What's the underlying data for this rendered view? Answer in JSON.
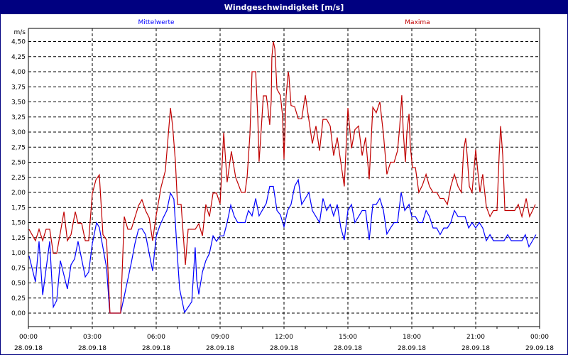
{
  "window": {
    "title": "Windgeschwindigkeit [m/s]"
  },
  "chart_data": {
    "type": "line",
    "title": "Windgeschwindigkeit [m/s]",
    "ylabel": "m/s",
    "xlabel": "",
    "ylim": [
      0,
      4.5
    ],
    "xlim_hours": [
      0,
      24
    ],
    "grid": true,
    "legend_placement": "top",
    "y_ticks": [
      "0,00",
      "0,25",
      "0,50",
      "0,75",
      "1,00",
      "1,25",
      "1,50",
      "1,75",
      "2,00",
      "2,25",
      "2,50",
      "2,75",
      "3,00",
      "3,25",
      "3,50",
      "3,75",
      "4,00",
      "4,25",
      "4,50"
    ],
    "x_ticks": [
      {
        "time": "00:00",
        "date": "28.09.18"
      },
      {
        "time": "03:00",
        "date": "28.09.18"
      },
      {
        "time": "06:00",
        "date": "28.09.18"
      },
      {
        "time": "09:00",
        "date": "28.09.18"
      },
      {
        "time": "12:00",
        "date": "28.09.18"
      },
      {
        "time": "15:00",
        "date": "28.09.18"
      },
      {
        "time": "18:00",
        "date": "28.09.18"
      },
      {
        "time": "21:00",
        "date": "28.09.18"
      },
      {
        "time": "00:00",
        "date": "29.09.18"
      }
    ],
    "series": [
      {
        "name": "Mittelwerte",
        "color": "#0000ff",
        "points": [
          [
            0.03,
            0.95
          ],
          [
            0.33,
            0.52
          ],
          [
            0.5,
            1.19
          ],
          [
            0.67,
            0.3
          ],
          [
            1.0,
            1.19
          ],
          [
            1.17,
            0.1
          ],
          [
            1.33,
            0.21
          ],
          [
            1.5,
            0.87
          ],
          [
            1.83,
            0.4
          ],
          [
            2.0,
            0.8
          ],
          [
            2.17,
            0.9
          ],
          [
            2.33,
            1.19
          ],
          [
            2.67,
            0.6
          ],
          [
            2.83,
            0.68
          ],
          [
            3.0,
            1.15
          ],
          [
            3.2,
            1.5
          ],
          [
            3.33,
            1.42
          ],
          [
            3.67,
            0.75
          ],
          [
            3.8,
            0.1
          ],
          [
            3.83,
            0
          ],
          [
            4.33,
            0
          ],
          [
            4.5,
            0.28
          ],
          [
            4.83,
            0.83
          ],
          [
            5.0,
            1.15
          ],
          [
            5.17,
            1.39
          ],
          [
            5.33,
            1.4
          ],
          [
            5.5,
            1.3
          ],
          [
            5.67,
            0.99
          ],
          [
            5.83,
            0.7
          ],
          [
            6.0,
            1.27
          ],
          [
            6.17,
            1.45
          ],
          [
            6.33,
            1.58
          ],
          [
            6.5,
            1.7
          ],
          [
            6.67,
            1.99
          ],
          [
            6.83,
            1.89
          ],
          [
            6.9,
            1.5
          ],
          [
            7.0,
            0.92
          ],
          [
            7.1,
            0.4
          ],
          [
            7.33,
            0.01
          ],
          [
            7.67,
            0.19
          ],
          [
            7.83,
            1.09
          ],
          [
            7.9,
            0.56
          ],
          [
            8.0,
            0.31
          ],
          [
            8.17,
            0.68
          ],
          [
            8.33,
            0.87
          ],
          [
            8.5,
            0.99
          ],
          [
            8.67,
            1.28
          ],
          [
            8.83,
            1.19
          ],
          [
            9.0,
            1.28
          ],
          [
            9.17,
            1.28
          ],
          [
            9.33,
            1.5
          ],
          [
            9.5,
            1.79
          ],
          [
            9.67,
            1.6
          ],
          [
            9.83,
            1.5
          ],
          [
            10.17,
            1.5
          ],
          [
            10.33,
            1.7
          ],
          [
            10.5,
            1.61
          ],
          [
            10.67,
            1.9
          ],
          [
            10.83,
            1.61
          ],
          [
            11.17,
            1.82
          ],
          [
            11.33,
            2.1
          ],
          [
            11.5,
            2.1
          ],
          [
            11.67,
            1.7
          ],
          [
            11.83,
            1.63
          ],
          [
            12.0,
            1.43
          ],
          [
            12.17,
            1.7
          ],
          [
            12.33,
            1.8
          ],
          [
            12.5,
            2.1
          ],
          [
            12.67,
            2.21
          ],
          [
            12.83,
            1.8
          ],
          [
            13.17,
            2.0
          ],
          [
            13.33,
            1.7
          ],
          [
            13.67,
            1.5
          ],
          [
            13.83,
            1.9
          ],
          [
            14.0,
            1.7
          ],
          [
            14.17,
            1.8
          ],
          [
            14.33,
            1.61
          ],
          [
            14.5,
            1.8
          ],
          [
            14.67,
            1.41
          ],
          [
            14.83,
            1.21
          ],
          [
            15.0,
            1.7
          ],
          [
            15.17,
            1.8
          ],
          [
            15.33,
            1.5
          ],
          [
            15.67,
            1.7
          ],
          [
            15.83,
            1.7
          ],
          [
            16.0,
            1.21
          ],
          [
            16.17,
            1.8
          ],
          [
            16.33,
            1.8
          ],
          [
            16.5,
            1.9
          ],
          [
            16.67,
            1.7
          ],
          [
            16.83,
            1.31
          ],
          [
            17.0,
            1.41
          ],
          [
            17.17,
            1.5
          ],
          [
            17.33,
            1.5
          ],
          [
            17.5,
            2.0
          ],
          [
            17.67,
            1.7
          ],
          [
            17.87,
            1.8
          ],
          [
            18.0,
            1.6
          ],
          [
            18.17,
            1.6
          ],
          [
            18.33,
            1.5
          ],
          [
            18.5,
            1.5
          ],
          [
            18.67,
            1.7
          ],
          [
            18.83,
            1.6
          ],
          [
            19.0,
            1.41
          ],
          [
            19.17,
            1.41
          ],
          [
            19.33,
            1.3
          ],
          [
            19.5,
            1.41
          ],
          [
            19.67,
            1.41
          ],
          [
            19.83,
            1.5
          ],
          [
            20.0,
            1.7
          ],
          [
            20.17,
            1.6
          ],
          [
            20.5,
            1.6
          ],
          [
            20.67,
            1.41
          ],
          [
            20.83,
            1.5
          ],
          [
            21.0,
            1.41
          ],
          [
            21.17,
            1.5
          ],
          [
            21.33,
            1.41
          ],
          [
            21.5,
            1.2
          ],
          [
            21.67,
            1.3
          ],
          [
            21.83,
            1.2
          ],
          [
            22.33,
            1.2
          ],
          [
            22.5,
            1.3
          ],
          [
            22.67,
            1.2
          ],
          [
            23.17,
            1.2
          ],
          [
            23.33,
            1.3
          ],
          [
            23.5,
            1.1
          ],
          [
            23.67,
            1.2
          ],
          [
            23.83,
            1.3
          ]
        ]
      },
      {
        "name": "Maxima",
        "color": "#c00000",
        "points": [
          [
            0.03,
            1.39
          ],
          [
            0.33,
            1.2
          ],
          [
            0.5,
            1.39
          ],
          [
            0.67,
            1.2
          ],
          [
            0.83,
            1.39
          ],
          [
            1.0,
            1.39
          ],
          [
            1.17,
            0.99
          ],
          [
            1.33,
            0.99
          ],
          [
            1.67,
            1.68
          ],
          [
            1.83,
            1.2
          ],
          [
            2.0,
            1.3
          ],
          [
            2.2,
            1.68
          ],
          [
            2.33,
            1.49
          ],
          [
            2.5,
            1.49
          ],
          [
            2.67,
            1.2
          ],
          [
            2.83,
            1.2
          ],
          [
            3.0,
            1.98
          ],
          [
            3.17,
            2.21
          ],
          [
            3.33,
            2.29
          ],
          [
            3.5,
            1.3
          ],
          [
            3.67,
            1.21
          ],
          [
            3.83,
            0
          ],
          [
            4.33,
            0
          ],
          [
            4.5,
            1.6
          ],
          [
            4.67,
            1.39
          ],
          [
            4.83,
            1.39
          ],
          [
            5.17,
            1.78
          ],
          [
            5.33,
            1.88
          ],
          [
            5.5,
            1.7
          ],
          [
            5.67,
            1.58
          ],
          [
            5.83,
            1.2
          ],
          [
            6.0,
            1.62
          ],
          [
            6.23,
            2.09
          ],
          [
            6.43,
            2.36
          ],
          [
            6.67,
            3.4
          ],
          [
            6.77,
            3.1
          ],
          [
            6.9,
            2.52
          ],
          [
            7.0,
            1.8
          ],
          [
            7.17,
            1.8
          ],
          [
            7.27,
            1.3
          ],
          [
            7.37,
            0.8
          ],
          [
            7.5,
            1.39
          ],
          [
            7.83,
            1.39
          ],
          [
            8.0,
            1.48
          ],
          [
            8.17,
            1.28
          ],
          [
            8.33,
            1.8
          ],
          [
            8.5,
            1.6
          ],
          [
            8.67,
            1.99
          ],
          [
            8.83,
            1.99
          ],
          [
            9.0,
            1.81
          ],
          [
            9.17,
            2.99
          ],
          [
            9.33,
            2.17
          ],
          [
            9.53,
            2.68
          ],
          [
            9.73,
            2.25
          ],
          [
            10.0,
            2.0
          ],
          [
            10.17,
            2.0
          ],
          [
            10.27,
            2.26
          ],
          [
            10.4,
            2.96
          ],
          [
            10.5,
            4.0
          ],
          [
            10.67,
            4.0
          ],
          [
            10.77,
            3.24
          ],
          [
            10.83,
            2.51
          ],
          [
            10.93,
            3.04
          ],
          [
            11.03,
            3.6
          ],
          [
            11.17,
            3.6
          ],
          [
            11.23,
            3.44
          ],
          [
            11.33,
            3.12
          ],
          [
            11.4,
            3.52
          ],
          [
            11.43,
            4.24
          ],
          [
            11.5,
            4.5
          ],
          [
            11.57,
            4.38
          ],
          [
            11.67,
            3.71
          ],
          [
            11.83,
            3.61
          ],
          [
            11.93,
            3.28
          ],
          [
            12.0,
            2.55
          ],
          [
            12.1,
            3.6
          ],
          [
            12.2,
            4.0
          ],
          [
            12.23,
            3.93
          ],
          [
            12.33,
            3.44
          ],
          [
            12.5,
            3.42
          ],
          [
            12.67,
            3.22
          ],
          [
            12.83,
            3.22
          ],
          [
            13.0,
            3.61
          ],
          [
            13.17,
            3.2
          ],
          [
            13.33,
            2.81
          ],
          [
            13.5,
            3.1
          ],
          [
            13.67,
            2.69
          ],
          [
            13.83,
            3.21
          ],
          [
            14.0,
            3.21
          ],
          [
            14.17,
            3.1
          ],
          [
            14.33,
            2.61
          ],
          [
            14.5,
            2.91
          ],
          [
            14.67,
            2.49
          ],
          [
            14.83,
            2.1
          ],
          [
            15.0,
            3.4
          ],
          [
            15.07,
            3.12
          ],
          [
            15.17,
            2.73
          ],
          [
            15.33,
            3.04
          ],
          [
            15.5,
            3.1
          ],
          [
            15.67,
            2.61
          ],
          [
            15.83,
            2.91
          ],
          [
            16.0,
            2.22
          ],
          [
            16.17,
            3.41
          ],
          [
            16.33,
            3.32
          ],
          [
            16.5,
            3.5
          ],
          [
            16.67,
            2.96
          ],
          [
            16.83,
            2.3
          ],
          [
            17.0,
            2.5
          ],
          [
            17.17,
            2.5
          ],
          [
            17.33,
            2.69
          ],
          [
            17.43,
            3.08
          ],
          [
            17.53,
            3.61
          ],
          [
            17.6,
            3.0
          ],
          [
            17.7,
            2.5
          ],
          [
            17.77,
            3.0
          ],
          [
            17.87,
            3.3
          ],
          [
            17.93,
            2.77
          ],
          [
            18.03,
            2.41
          ],
          [
            18.17,
            2.41
          ],
          [
            18.33,
            2.0
          ],
          [
            18.5,
            2.12
          ],
          [
            18.67,
            2.3
          ],
          [
            18.83,
            2.1
          ],
          [
            19.0,
            2.0
          ],
          [
            19.17,
            2.0
          ],
          [
            19.33,
            1.9
          ],
          [
            19.5,
            1.9
          ],
          [
            19.67,
            1.8
          ],
          [
            19.83,
            2.1
          ],
          [
            20.0,
            2.3
          ],
          [
            20.17,
            2.1
          ],
          [
            20.33,
            2.0
          ],
          [
            20.43,
            2.69
          ],
          [
            20.53,
            2.9
          ],
          [
            20.6,
            2.61
          ],
          [
            20.7,
            2.1
          ],
          [
            20.83,
            2.0
          ],
          [
            21.0,
            2.71
          ],
          [
            21.07,
            2.45
          ],
          [
            21.2,
            2.0
          ],
          [
            21.33,
            2.3
          ],
          [
            21.5,
            1.76
          ],
          [
            21.67,
            1.6
          ],
          [
            21.83,
            1.7
          ],
          [
            22.0,
            1.7
          ],
          [
            22.1,
            2.61
          ],
          [
            22.17,
            3.1
          ],
          [
            22.27,
            2.61
          ],
          [
            22.37,
            1.7
          ],
          [
            22.83,
            1.7
          ],
          [
            23.0,
            1.8
          ],
          [
            23.17,
            1.6
          ],
          [
            23.37,
            1.9
          ],
          [
            23.53,
            1.6
          ],
          [
            23.67,
            1.7
          ],
          [
            23.8,
            1.8
          ]
        ]
      }
    ]
  }
}
